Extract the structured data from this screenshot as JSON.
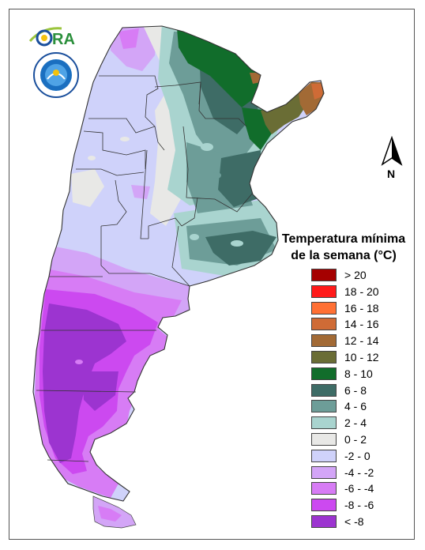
{
  "logo": {
    "brand_text": "ORA",
    "seal_text": "SERVICIO METEOROLÓGICO NACIONAL ARGENTINA"
  },
  "north_arrow": {
    "label": "N"
  },
  "legend": {
    "title_line1": "Temperatura mínima",
    "title_line2": "de la semana (°C)",
    "items": [
      {
        "label": "> 20",
        "color": "#a50000"
      },
      {
        "label": "18 - 20",
        "color": "#ff1a1a"
      },
      {
        "label": "16 - 18",
        "color": "#ff7034"
      },
      {
        "label": "14 - 16",
        "color": "#cf6b36"
      },
      {
        "label": "12 - 14",
        "color": "#a26a35"
      },
      {
        "label": "10 - 12",
        "color": "#6a6d35"
      },
      {
        "label": "8 - 10",
        "color": "#116d2b"
      },
      {
        "label": "6 - 8",
        "color": "#3e6c66"
      },
      {
        "label": "4 - 6",
        "color": "#6d9d98"
      },
      {
        "label": "2 - 4",
        "color": "#a9d4cf"
      },
      {
        "label": "0 - 2",
        "color": "#e8e8e6"
      },
      {
        "label": "-2 - 0",
        "color": "#cfd2fa"
      },
      {
        "label": "-4 - -2",
        "color": "#d3a5f7"
      },
      {
        "label": "-6 - -4",
        "color": "#d77cf5"
      },
      {
        "label": "-8 - -6",
        "color": "#cc49f0"
      },
      {
        "label": "< -8",
        "color": "#9c34d0"
      }
    ]
  }
}
